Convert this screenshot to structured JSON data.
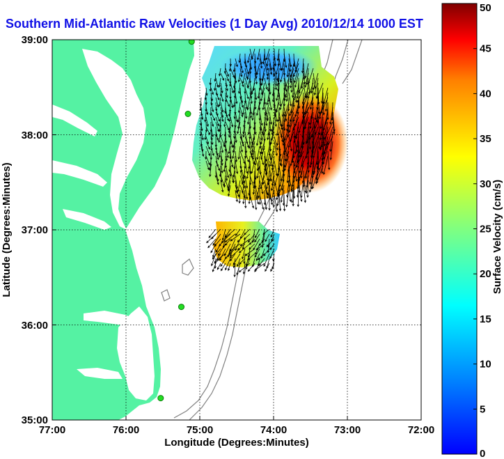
{
  "chart_data": {
    "type": "heatmap",
    "title": "Southern Mid-Atlantic Raw Velocities (1 Day Avg) 2010/12/14 1000 EST",
    "xlabel": "Longitude (Degrees:Minutes)",
    "ylabel": "Latitude (Degrees:Minutes)",
    "x_ticks": [
      "77:00",
      "76:00",
      "75:00",
      "74:00",
      "73:00",
      "72:00"
    ],
    "y_ticks": [
      "39:00",
      "38:00",
      "37:00",
      "36:00",
      "35:00"
    ],
    "xlim": [
      -77,
      -72
    ],
    "ylim": [
      35,
      39
    ],
    "grid": true,
    "colorbar": {
      "label": "Surface Velocity (cm/s)",
      "range": [
        0,
        50
      ],
      "ticks": [
        "0",
        "5",
        "10",
        "15",
        "20",
        "25",
        "30",
        "35",
        "40",
        "45",
        "50"
      ],
      "colormap": "jet"
    },
    "stations": [
      {
        "lon": -75.11,
        "lat": 38.98
      },
      {
        "lon": -75.16,
        "lat": 38.22
      },
      {
        "lon": -75.25,
        "lat": 36.19
      },
      {
        "lon": -75.53,
        "lat": 35.23
      }
    ],
    "fields": [
      {
        "region": "northern",
        "lon_range": [
          -75.1,
          -73.2
        ],
        "lat_range": [
          37.4,
          39.0
        ],
        "speed_cm_s": {
          "north_interior": 12,
          "west_edge": 22,
          "southeast_core": 47,
          "south_edge": 38
        }
      },
      {
        "region": "southern",
        "lon_range": [
          -75.2,
          -74.15
        ],
        "lat_range": [
          36.7,
          37.05
        ],
        "speed_cm_s": {
          "west": 30,
          "center": 24,
          "east": 14
        }
      }
    ],
    "land_color": "#55f2a3",
    "contour_color": "#808080",
    "vector_color": "#000000"
  }
}
